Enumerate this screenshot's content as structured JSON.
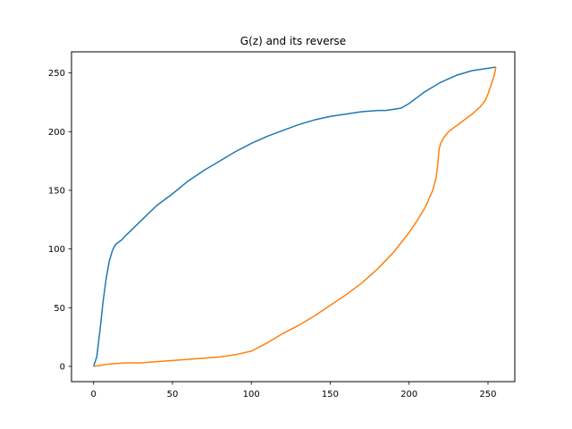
{
  "chart_data": {
    "type": "line",
    "title": "G(z) and its reverse",
    "xlabel": "",
    "ylabel": "",
    "xlim": [
      -14,
      267
    ],
    "ylim": [
      -13,
      268
    ],
    "xticks": [
      0,
      50,
      100,
      150,
      200,
      250
    ],
    "yticks": [
      0,
      50,
      100,
      150,
      200,
      250
    ],
    "grid": false,
    "series": [
      {
        "color": "#1f77b4",
        "x": [
          0,
          2,
          4,
          6,
          8,
          10,
          12,
          14,
          16,
          18,
          20,
          30,
          40,
          50,
          60,
          70,
          80,
          90,
          100,
          110,
          120,
          130,
          140,
          150,
          160,
          170,
          180,
          185,
          190,
          195,
          200,
          205,
          210,
          215,
          220,
          225,
          230,
          235,
          240,
          245,
          250,
          255
        ],
        "y": [
          0,
          8,
          30,
          55,
          75,
          90,
          99,
          104,
          106,
          108,
          111,
          124,
          137,
          147,
          158,
          167,
          175,
          183,
          190,
          196,
          201,
          206,
          210,
          213,
          215,
          217,
          218,
          218,
          219,
          220,
          224,
          229,
          234,
          238,
          242,
          245,
          248,
          250,
          252,
          253,
          254,
          255
        ]
      },
      {
        "color": "#ff7f0e",
        "x": [
          0,
          10,
          20,
          30,
          40,
          50,
          60,
          70,
          80,
          90,
          100,
          110,
          120,
          130,
          140,
          150,
          160,
          170,
          180,
          190,
          200,
          205,
          210,
          215,
          217,
          218,
          219,
          220,
          222,
          225,
          230,
          235,
          240,
          245,
          248,
          250,
          252,
          254,
          255
        ],
        "y": [
          0,
          2,
          3,
          3,
          4,
          5,
          6,
          7,
          8,
          10,
          13,
          20,
          28,
          35,
          43,
          52,
          61,
          71,
          83,
          97,
          114,
          124,
          135,
          150,
          160,
          170,
          185,
          190,
          195,
          200,
          205,
          210,
          215,
          221,
          226,
          232,
          240,
          248,
          255
        ]
      }
    ]
  }
}
